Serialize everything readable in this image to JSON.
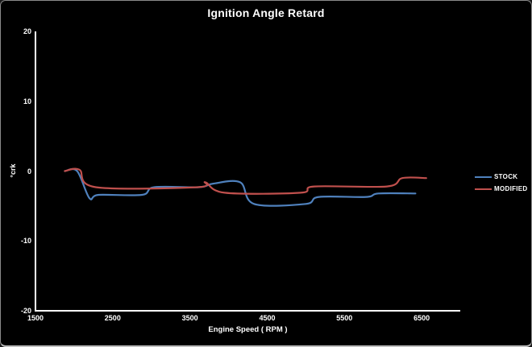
{
  "window": {
    "title": "Ignition Angle Retard"
  },
  "chart_data": {
    "type": "line",
    "title": "Ignition Angle Retard",
    "xlabel": "Engine Speed ( RPM )",
    "ylabel": "°crk",
    "xlim": [
      1500,
      7000
    ],
    "ylim": [
      -20,
      20
    ],
    "x_ticks": [
      1500,
      2500,
      3500,
      4500,
      5500,
      6500
    ],
    "y_ticks": [
      20,
      10,
      0,
      -10,
      -20
    ],
    "grid": false,
    "background": "#000000",
    "axis_color": "#ffffff",
    "legend_position": "right",
    "series": [
      {
        "name": "STOCK",
        "color": "#4F81BD",
        "points": [
          [
            1880,
            0
          ],
          [
            2040,
            0
          ],
          [
            2200,
            -3.9
          ],
          [
            2320,
            -3.4
          ],
          [
            2880,
            -3.4
          ],
          [
            3040,
            -2.3
          ],
          [
            3620,
            -2.3
          ],
          [
            3800,
            -1.8
          ],
          [
            4150,
            -1.6
          ],
          [
            4330,
            -4.7
          ],
          [
            5000,
            -4.7
          ],
          [
            5170,
            -3.7
          ],
          [
            5780,
            -3.7
          ],
          [
            5940,
            -3.2
          ],
          [
            6420,
            -3.2
          ]
        ]
      },
      {
        "name": "MODIFIED",
        "color": "#C0504D",
        "points": [
          [
            1880,
            0
          ],
          [
            2070,
            0.2
          ],
          [
            2280,
            -2.3
          ],
          [
            3600,
            -2.3
          ],
          [
            3700,
            -1.6
          ],
          [
            3950,
            -3.1
          ],
          [
            4930,
            -3.1
          ],
          [
            5110,
            -2.2
          ],
          [
            6050,
            -2.2
          ],
          [
            6250,
            -1.0
          ],
          [
            6560,
            -1.0
          ]
        ]
      }
    ]
  }
}
